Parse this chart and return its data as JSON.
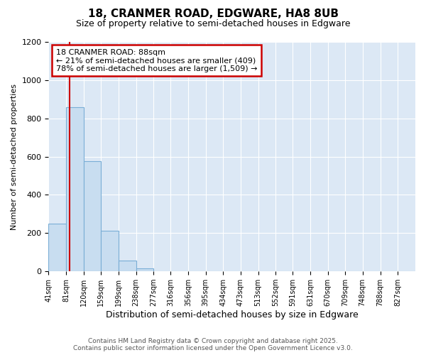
{
  "title": "18, CRANMER ROAD, EDGWARE, HA8 8UB",
  "subtitle": "Size of property relative to semi-detached houses in Edgware",
  "xlabel": "Distribution of semi-detached houses by size in Edgware",
  "ylabel": "Number of semi-detached properties",
  "bin_edges": [
    41,
    81,
    120,
    159,
    199,
    238,
    277,
    316,
    356,
    395,
    434,
    473,
    513,
    552,
    591,
    631,
    670,
    709,
    748,
    788,
    827
  ],
  "bar_heights": [
    248,
    857,
    578,
    213,
    57,
    14,
    0,
    0,
    0,
    0,
    0,
    0,
    0,
    0,
    0,
    0,
    0,
    0,
    0,
    0
  ],
  "bar_color": "#c8ddf0",
  "bar_edge_color": "#7aaed6",
  "ylim": [
    0,
    1200
  ],
  "yticks": [
    0,
    200,
    400,
    600,
    800,
    1000,
    1200
  ],
  "property_size": 88,
  "vline_color": "#cc0000",
  "annotation_line1": "18 CRANMER ROAD: 88sqm",
  "annotation_line2": "← 21% of semi-detached houses are smaller (409)",
  "annotation_line3": "78% of semi-detached houses are larger (1,509) →",
  "annotation_box_color": "#ffffff",
  "annotation_border_color": "#cc0000",
  "footer_line1": "Contains HM Land Registry data © Crown copyright and database right 2025.",
  "footer_line2": "Contains public sector information licensed under the Open Government Licence v3.0.",
  "fig_background_color": "#ffffff",
  "plot_bg_color": "#dce8f5",
  "grid_color": "#ffffff",
  "tick_labels": [
    "41sqm",
    "81sqm",
    "120sqm",
    "159sqm",
    "199sqm",
    "238sqm",
    "277sqm",
    "316sqm",
    "356sqm",
    "395sqm",
    "434sqm",
    "473sqm",
    "513sqm",
    "552sqm",
    "591sqm",
    "631sqm",
    "670sqm",
    "709sqm",
    "748sqm",
    "788sqm",
    "827sqm"
  ]
}
